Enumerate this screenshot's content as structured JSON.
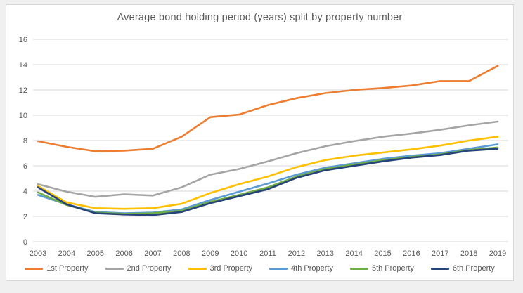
{
  "page": {
    "background_color": "#f0f0f0",
    "chart_background_color": "#ffffff",
    "chart_border_color": "#d6d6d6"
  },
  "chart_data": {
    "type": "line",
    "title": "Average bond holding period (years) split by property number",
    "x": [
      2003,
      2004,
      2005,
      2006,
      2007,
      2008,
      2009,
      2010,
      2011,
      2012,
      2013,
      2014,
      2015,
      2016,
      2017,
      2018,
      2019
    ],
    "series": [
      {
        "name": "1st Property",
        "color": "#ED7D31",
        "values": [
          7.95,
          7.5,
          7.15,
          7.2,
          7.35,
          8.3,
          9.85,
          10.05,
          10.8,
          11.35,
          11.75,
          12.0,
          12.15,
          12.35,
          12.7,
          12.7,
          13.9
        ]
      },
      {
        "name": "2nd Property",
        "color": "#A5A5A5",
        "values": [
          4.55,
          3.95,
          3.55,
          3.75,
          3.65,
          4.3,
          5.3,
          5.75,
          6.35,
          7.0,
          7.55,
          7.95,
          8.3,
          8.55,
          8.85,
          9.2,
          9.5
        ]
      },
      {
        "name": "3rd Property",
        "color": "#FFC000",
        "values": [
          4.4,
          3.1,
          2.65,
          2.6,
          2.65,
          3.0,
          3.85,
          4.55,
          5.15,
          5.9,
          6.45,
          6.8,
          7.05,
          7.3,
          7.6,
          8.0,
          8.3
        ]
      },
      {
        "name": "4th Property",
        "color": "#5B9BD5",
        "values": [
          3.7,
          2.95,
          2.35,
          2.25,
          2.3,
          2.55,
          3.3,
          3.95,
          4.6,
          5.3,
          5.85,
          6.2,
          6.55,
          6.8,
          7.0,
          7.35,
          7.7
        ]
      },
      {
        "name": "5th Property",
        "color": "#70AD47",
        "values": [
          3.9,
          2.9,
          2.3,
          2.2,
          2.25,
          2.45,
          3.15,
          3.7,
          4.3,
          5.15,
          5.75,
          6.1,
          6.45,
          6.7,
          6.9,
          7.25,
          7.45
        ]
      },
      {
        "name": "6th Property",
        "color": "#264478",
        "values": [
          4.3,
          2.95,
          2.25,
          2.15,
          2.1,
          2.35,
          3.05,
          3.6,
          4.15,
          5.05,
          5.65,
          6.0,
          6.35,
          6.65,
          6.85,
          7.2,
          7.35
        ]
      }
    ],
    "xlabel": "",
    "ylabel": "",
    "ylim": [
      0,
      16
    ],
    "ytick_step": 2,
    "grid": true,
    "legend_position": "bottom",
    "text_color": "#595959",
    "gridline_color": "#D9D9D9"
  }
}
